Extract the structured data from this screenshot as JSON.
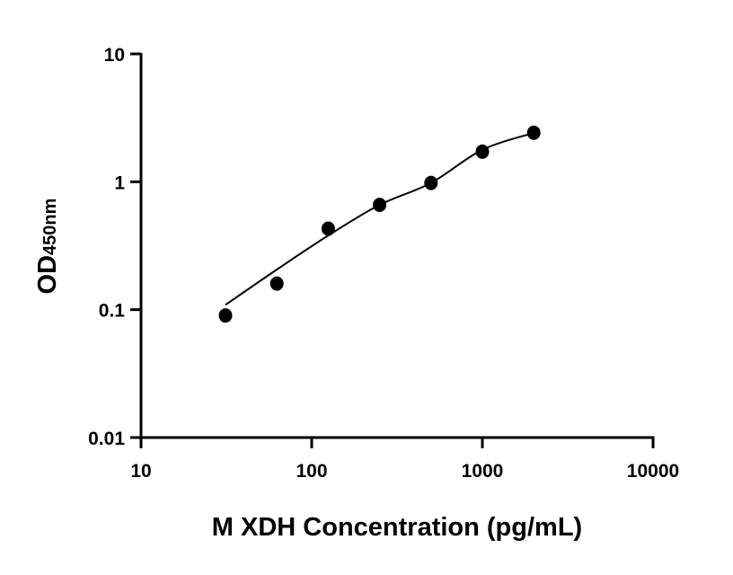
{
  "chart_data": {
    "type": "scatter",
    "title": "",
    "xlabel": "M XDH Concentration (pg/mL)",
    "ylabel": "OD",
    "ylabel_subscript": "450nm",
    "xscale": "log",
    "yscale": "log",
    "xlim": [
      10,
      10000
    ],
    "ylim": [
      0.01,
      10
    ],
    "xticks": [
      10,
      100,
      1000,
      10000
    ],
    "xtick_labels": [
      "10",
      "100",
      "1000",
      "10000"
    ],
    "yticks": [
      0.01,
      0.1,
      1,
      10
    ],
    "ytick_labels": [
      "0.01",
      "0.1",
      "1",
      "10"
    ],
    "grid": false,
    "colors": {
      "points": "#000000",
      "curve": "#000000"
    },
    "points": {
      "x": [
        31.25,
        62.5,
        125,
        250,
        500,
        1000,
        2000
      ],
      "y": [
        0.09,
        0.16,
        0.43,
        0.66,
        0.98,
        1.72,
        2.42
      ]
    },
    "fit_curve": {
      "x": [
        31.25,
        62.5,
        125,
        250,
        500,
        1000,
        2000
      ],
      "y": [
        0.109,
        0.206,
        0.38,
        0.66,
        0.98,
        1.78,
        2.41
      ]
    }
  }
}
